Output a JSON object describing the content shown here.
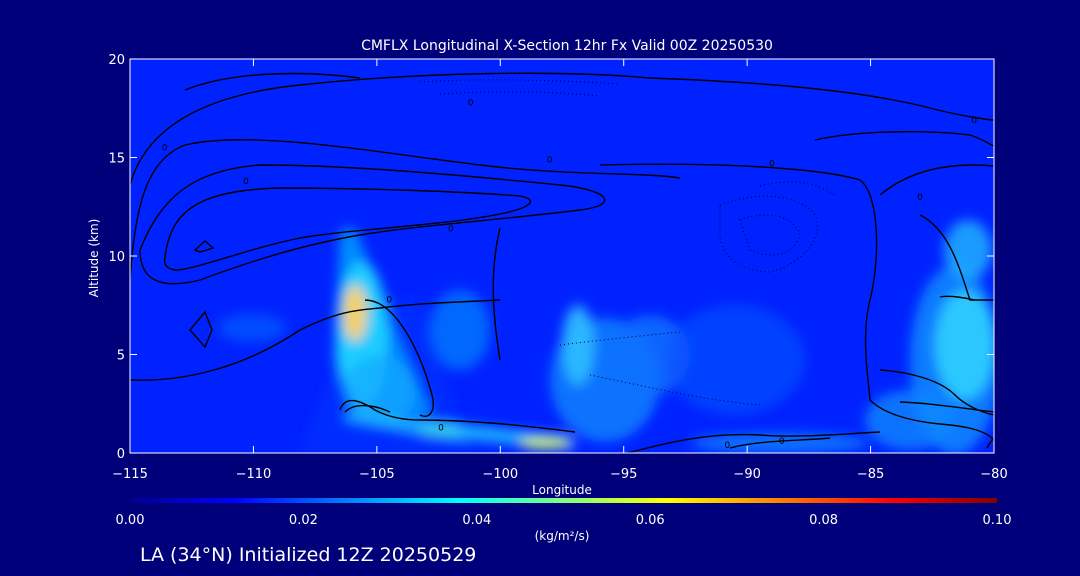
{
  "chart_data": {
    "type": "heatmap",
    "title": "CMFLX Longitudinal X-Section 12hr  Fx Valid 00Z 20250530",
    "xlabel": "Longitude",
    "ylabel": "Altitude (km)",
    "xlim": [
      -115,
      -80
    ],
    "ylim": [
      0,
      20
    ],
    "x_ticks": [
      -115,
      -110,
      -105,
      -100,
      -95,
      -90,
      -85,
      -80
    ],
    "x_tick_labels": [
      "−115",
      "−110",
      "−105",
      "−100",
      "−95",
      "−90",
      "−85",
      "−80"
    ],
    "y_ticks": [
      0,
      5,
      10,
      15,
      20
    ],
    "y_tick_labels": [
      "0",
      "5",
      "10",
      "15",
      "20"
    ],
    "colorbar": {
      "label": "(kg/m²/s)",
      "min": 0.0,
      "max": 0.1,
      "ticks": [
        0.0,
        0.02,
        0.04,
        0.06,
        0.08,
        0.1
      ],
      "tick_labels": [
        "0.00",
        "0.02",
        "0.04",
        "0.06",
        "0.08",
        "0.10"
      ],
      "colormap": [
        "#00008f",
        "#0000ff",
        "#0080ff",
        "#00ffff",
        "#80ff80",
        "#ffff00",
        "#ff8000",
        "#ff0000",
        "#800000"
      ]
    },
    "field_features": [
      {
        "lon": -106.0,
        "alt": 7.2,
        "value": 0.055
      },
      {
        "lon": -105.5,
        "alt": 5.0,
        "value": 0.035
      },
      {
        "lon": -98.0,
        "alt": 0.5,
        "value": 0.055
      },
      {
        "lon": -102.0,
        "alt": 1.2,
        "value": 0.035
      },
      {
        "lon": -96.8,
        "alt": 5.5,
        "value": 0.03
      },
      {
        "lon": -81.0,
        "alt": 5.5,
        "value": 0.04
      },
      {
        "lon": -81.0,
        "alt": 9.5,
        "value": 0.025
      },
      {
        "lon": -92.0,
        "alt": 4.5,
        "value": 0.015
      },
      {
        "lon": -87.0,
        "alt": 0.5,
        "value": 0.015
      }
    ],
    "contour_labels": [
      {
        "text": "0",
        "lon": -101.2,
        "alt": 17.8
      },
      {
        "text": "0",
        "lon": -98.0,
        "alt": 14.9
      },
      {
        "text": "0",
        "lon": -110.3,
        "alt": 13.8
      },
      {
        "text": "0",
        "lon": -102.0,
        "alt": 11.4
      },
      {
        "text": "0",
        "lon": -104.5,
        "alt": 7.8
      },
      {
        "text": "0",
        "lon": -113.6,
        "alt": 15.5
      },
      {
        "text": "0",
        "lon": -89.0,
        "alt": 14.7
      },
      {
        "text": "0",
        "lon": -80.8,
        "alt": 16.9
      },
      {
        "text": "0",
        "lon": -83.0,
        "alt": 13.0
      },
      {
        "text": "0",
        "lon": -90.8,
        "alt": 0.4
      },
      {
        "text": "0",
        "lon": -88.6,
        "alt": 0.6
      },
      {
        "text": "0",
        "lon": -102.4,
        "alt": 1.3
      }
    ]
  },
  "footer": {
    "caption": "LA (34°N) Initialized 12Z 20250529"
  }
}
